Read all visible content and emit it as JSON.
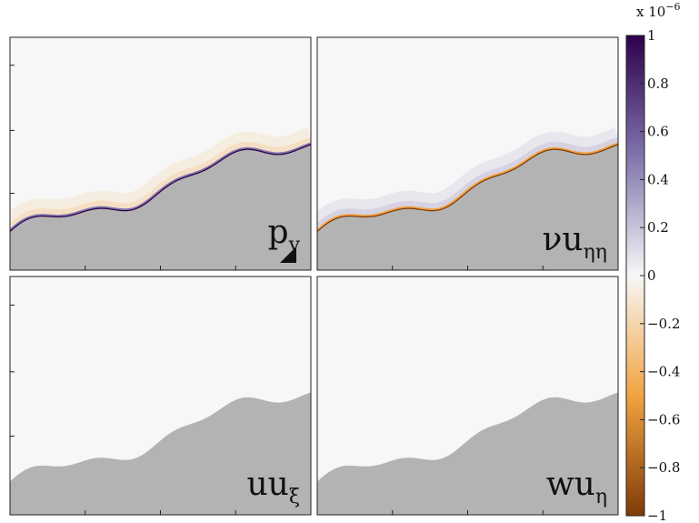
{
  "chart_data": {
    "type": "heatmap",
    "layout": "2x2 panels sharing one vertical colorbar",
    "panels": [
      {
        "name": "p_y",
        "label": {
          "main": "p",
          "sub": "y"
        },
        "signal": "positive band along the boundary, faint negative halo above",
        "marker": "filled triangle lower-right"
      },
      {
        "name": "nu u_etaeta",
        "label": {
          "main": "νu",
          "sub": "ηη"
        },
        "signal": "negative band along the boundary, faint positive halo above"
      },
      {
        "name": "u u_xi",
        "label": {
          "main": "uu",
          "sub": "ξ"
        },
        "signal": "near zero everywhere"
      },
      {
        "name": "w u_eta",
        "label": {
          "main": "wu",
          "sub": "η"
        },
        "signal": "near zero everywhere"
      }
    ],
    "colorbar": {
      "range": [
        -1,
        1
      ],
      "exponent_label": {
        "base": "x 10",
        "exp": "−6"
      },
      "ticks": [
        "1",
        "0.8",
        "0.6",
        "0.4",
        "0.2",
        "0",
        "−0.2",
        "−0.4",
        "−0.6",
        "−0.8",
        "−1"
      ],
      "tick_values": [
        1,
        0.8,
        0.6,
        0.4,
        0.2,
        0,
        -0.2,
        -0.4,
        -0.6,
        -0.8,
        -1
      ],
      "colormap": "purple (positive) - white (zero) - orange/brown (negative)",
      "colors": {
        "max": "#2d004b",
        "upper": "#8073ac",
        "zero": "#f7f7f7",
        "lower": "#f1a340",
        "min": "#7f3b08"
      }
    },
    "terrain_color": "#b3b3b3",
    "background_color": "#f7f7f7",
    "grid": false
  }
}
